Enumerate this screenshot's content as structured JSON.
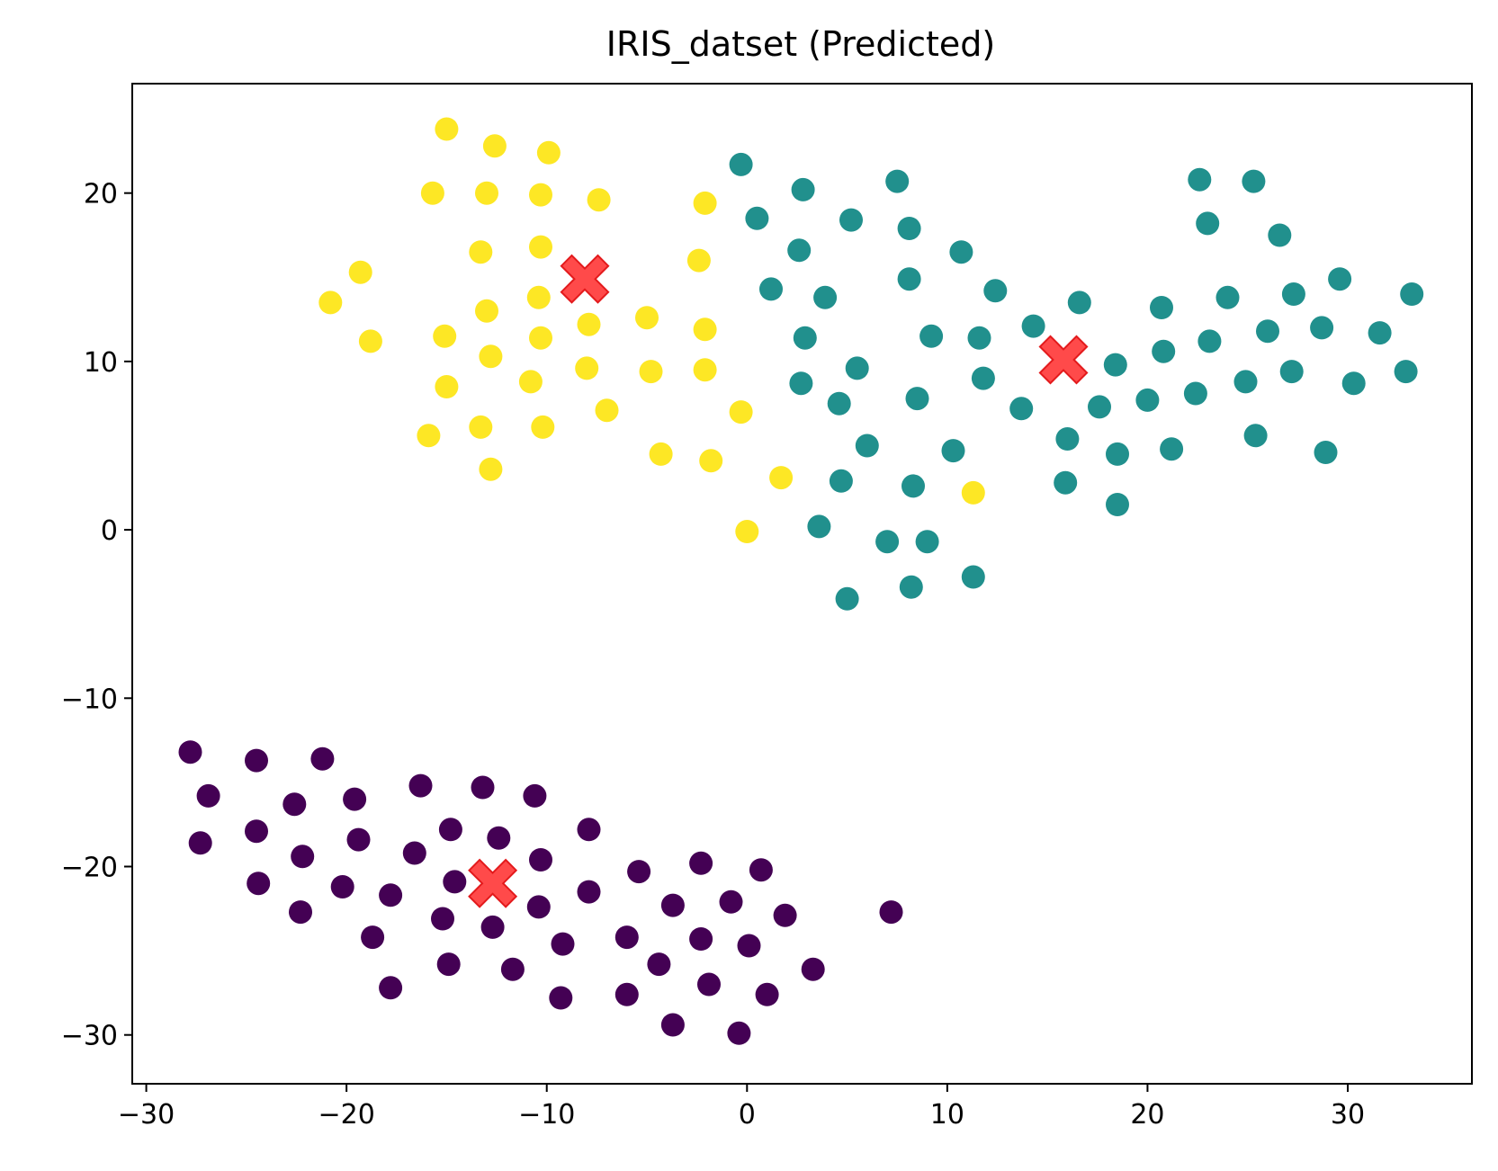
{
  "chart_data": {
    "type": "scatter",
    "title": "IRIS_datset (Predicted)",
    "xlabel": "",
    "ylabel": "",
    "xlim": [
      -30.7,
      36.2
    ],
    "ylim": [
      -32.9,
      26.5
    ],
    "xticks": [
      -30,
      -20,
      -10,
      0,
      10,
      20,
      30
    ],
    "yticks": [
      -30,
      -20,
      -10,
      0,
      10,
      20
    ],
    "xtick_labels": [
      "−30",
      "−20",
      "−10",
      "0",
      "10",
      "20",
      "30"
    ],
    "ytick_labels": [
      "−30",
      "−20",
      "−10",
      "0",
      "10",
      "20"
    ],
    "grid": false,
    "colors": {
      "cluster_0": "#440154",
      "cluster_1": "#21908d",
      "cluster_2": "#fde725",
      "centroid": "#ff2a2a"
    },
    "series": [
      {
        "color": "#440154",
        "points": [
          [
            -27.8,
            -13.2
          ],
          [
            -24.5,
            -13.7
          ],
          [
            -21.2,
            -13.6
          ],
          [
            -26.9,
            -15.8
          ],
          [
            -22.6,
            -16.3
          ],
          [
            -19.6,
            -16.0
          ],
          [
            -16.3,
            -15.2
          ],
          [
            -13.2,
            -15.3
          ],
          [
            -10.6,
            -15.8
          ],
          [
            -27.3,
            -18.6
          ],
          [
            -24.5,
            -17.9
          ],
          [
            -22.2,
            -19.4
          ],
          [
            -19.4,
            -18.4
          ],
          [
            -14.8,
            -17.8
          ],
          [
            -12.4,
            -18.3
          ],
          [
            -7.9,
            -17.8
          ],
          [
            -24.4,
            -21.0
          ],
          [
            -20.2,
            -21.2
          ],
          [
            -17.8,
            -21.7
          ],
          [
            -16.6,
            -19.2
          ],
          [
            -14.6,
            -20.9
          ],
          [
            -10.3,
            -19.6
          ],
          [
            -22.3,
            -22.7
          ],
          [
            -15.2,
            -23.1
          ],
          [
            -12.7,
            -23.6
          ],
          [
            -10.4,
            -22.4
          ],
          [
            -7.9,
            -21.5
          ],
          [
            -5.4,
            -20.3
          ],
          [
            -2.3,
            -19.8
          ],
          [
            0.7,
            -20.2
          ],
          [
            -3.7,
            -22.3
          ],
          [
            -0.8,
            -22.1
          ],
          [
            1.9,
            -22.9
          ],
          [
            7.2,
            -22.7
          ],
          [
            -18.7,
            -24.2
          ],
          [
            -14.9,
            -25.8
          ],
          [
            -11.7,
            -26.1
          ],
          [
            -9.2,
            -24.6
          ],
          [
            -6.0,
            -24.2
          ],
          [
            -2.3,
            -24.3
          ],
          [
            0.1,
            -24.7
          ],
          [
            -17.8,
            -27.2
          ],
          [
            -9.3,
            -27.8
          ],
          [
            -6.0,
            -27.6
          ],
          [
            -4.4,
            -25.8
          ],
          [
            -1.9,
            -27.0
          ],
          [
            1.0,
            -27.6
          ],
          [
            3.3,
            -26.1
          ],
          [
            -3.7,
            -29.4
          ],
          [
            -0.4,
            -29.9
          ]
        ]
      },
      {
        "color": "#21908d",
        "points": [
          [
            -0.3,
            21.7
          ],
          [
            2.8,
            20.2
          ],
          [
            7.5,
            20.7
          ],
          [
            22.6,
            20.8
          ],
          [
            25.3,
            20.7
          ],
          [
            0.5,
            18.5
          ],
          [
            5.2,
            18.4
          ],
          [
            8.1,
            17.9
          ],
          [
            23.0,
            18.2
          ],
          [
            26.6,
            17.5
          ],
          [
            2.6,
            16.6
          ],
          [
            10.7,
            16.5
          ],
          [
            1.2,
            14.3
          ],
          [
            3.9,
            13.8
          ],
          [
            8.1,
            14.9
          ],
          [
            12.4,
            14.2
          ],
          [
            16.6,
            13.5
          ],
          [
            20.7,
            13.2
          ],
          [
            24.0,
            13.8
          ],
          [
            27.3,
            14.0
          ],
          [
            29.6,
            14.9
          ],
          [
            33.2,
            14.0
          ],
          [
            2.9,
            11.4
          ],
          [
            9.2,
            11.5
          ],
          [
            11.6,
            11.4
          ],
          [
            14.3,
            12.1
          ],
          [
            20.8,
            10.6
          ],
          [
            23.1,
            11.2
          ],
          [
            26.0,
            11.8
          ],
          [
            28.7,
            12.0
          ],
          [
            31.6,
            11.7
          ],
          [
            2.7,
            8.7
          ],
          [
            5.5,
            9.6
          ],
          [
            11.8,
            9.0
          ],
          [
            18.4,
            9.8
          ],
          [
            32.9,
            9.4
          ],
          [
            4.6,
            7.5
          ],
          [
            8.5,
            7.8
          ],
          [
            13.7,
            7.2
          ],
          [
            17.6,
            7.3
          ],
          [
            20.0,
            7.7
          ],
          [
            22.4,
            8.1
          ],
          [
            24.9,
            8.8
          ],
          [
            27.2,
            9.4
          ],
          [
            30.3,
            8.7
          ],
          [
            6.0,
            5.0
          ],
          [
            10.3,
            4.7
          ],
          [
            16.0,
            5.4
          ],
          [
            18.5,
            4.5
          ],
          [
            21.2,
            4.8
          ],
          [
            25.4,
            5.6
          ],
          [
            28.9,
            4.6
          ],
          [
            4.7,
            2.9
          ],
          [
            8.3,
            2.6
          ],
          [
            15.9,
            2.8
          ],
          [
            18.5,
            1.5
          ],
          [
            3.6,
            0.2
          ],
          [
            7.0,
            -0.7
          ],
          [
            9.0,
            -0.7
          ],
          [
            11.3,
            -2.8
          ],
          [
            5.0,
            -4.1
          ],
          [
            8.2,
            -3.4
          ]
        ]
      },
      {
        "color": "#fde725",
        "points": [
          [
            -15.0,
            23.8
          ],
          [
            -12.6,
            22.8
          ],
          [
            -9.9,
            22.4
          ],
          [
            -15.7,
            20.0
          ],
          [
            -13.0,
            20.0
          ],
          [
            -10.3,
            19.9
          ],
          [
            -7.4,
            19.6
          ],
          [
            -2.1,
            19.4
          ],
          [
            -13.3,
            16.5
          ],
          [
            -10.3,
            16.8
          ],
          [
            -2.4,
            16.0
          ],
          [
            -19.3,
            15.3
          ],
          [
            -20.8,
            13.5
          ],
          [
            -13.0,
            13.0
          ],
          [
            -10.4,
            13.8
          ],
          [
            -5.0,
            12.6
          ],
          [
            -7.9,
            12.2
          ],
          [
            -2.1,
            11.9
          ],
          [
            -18.8,
            11.2
          ],
          [
            -15.1,
            11.5
          ],
          [
            -10.3,
            11.4
          ],
          [
            -12.8,
            10.3
          ],
          [
            -15.0,
            8.5
          ],
          [
            -10.8,
            8.8
          ],
          [
            -8.0,
            9.6
          ],
          [
            -4.8,
            9.4
          ],
          [
            -2.1,
            9.5
          ],
          [
            -15.9,
            5.6
          ],
          [
            -13.3,
            6.1
          ],
          [
            -10.2,
            6.1
          ],
          [
            -7.0,
            7.1
          ],
          [
            -0.3,
            7.0
          ],
          [
            -4.3,
            4.5
          ],
          [
            -1.8,
            4.1
          ],
          [
            -12.8,
            3.6
          ],
          [
            1.7,
            3.1
          ],
          [
            11.3,
            2.2
          ],
          [
            0.0,
            -0.1
          ]
        ]
      }
    ],
    "centroids": [
      [
        -8.1,
        14.9
      ],
      [
        15.8,
        10.1
      ],
      [
        -12.7,
        -21.0
      ]
    ]
  }
}
